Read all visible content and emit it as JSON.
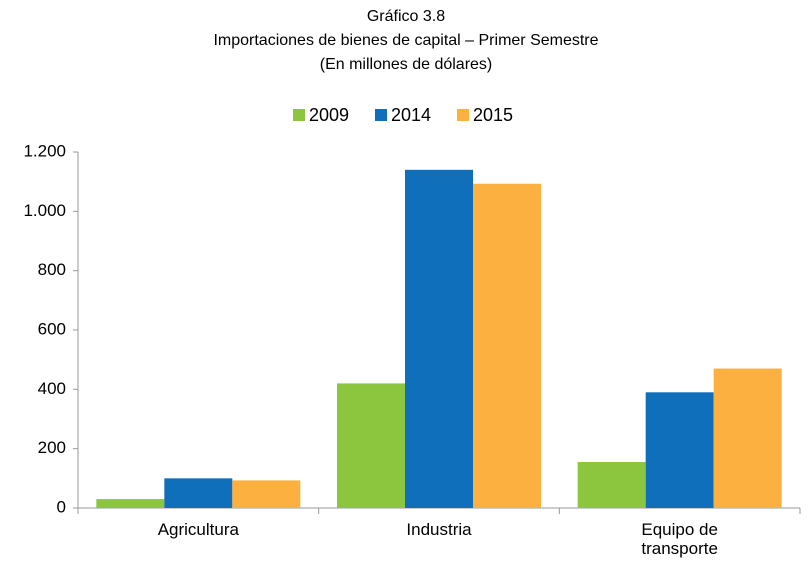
{
  "chart_data": {
    "type": "bar",
    "title": "Gráfico 3.8",
    "subtitle": "Importaciones de bienes de capital – Primer Semestre",
    "unit_label": "(En millones de dólares)",
    "categories": [
      "Agricultura",
      "Industria",
      "Equipo de transporte"
    ],
    "series": [
      {
        "name": "2009",
        "color": "#8cc63f",
        "values": [
          30,
          420,
          155
        ]
      },
      {
        "name": "2014",
        "color": "#0f6fba",
        "values": [
          100,
          1140,
          390
        ]
      },
      {
        "name": "2015",
        "color": "#fbb040",
        "values": [
          93,
          1093,
          470
        ]
      }
    ],
    "ylim": [
      0,
      1200
    ],
    "yticks": [
      0,
      200,
      400,
      600,
      800,
      {
        "value": 1000,
        "label": "1.000"
      },
      {
        "value": 1200,
        "label": "1.200"
      }
    ],
    "legend": "top",
    "grid": false
  }
}
